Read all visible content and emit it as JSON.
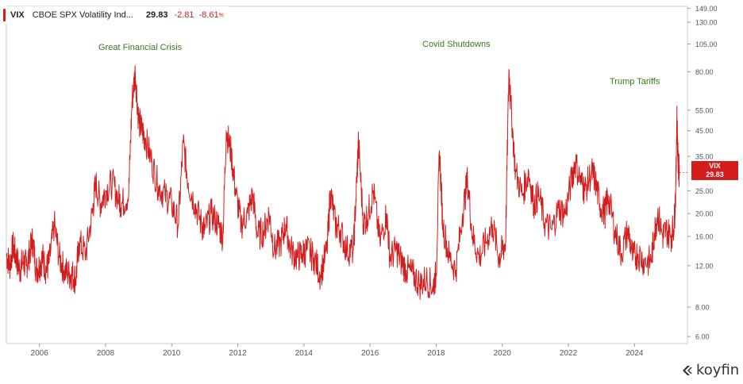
{
  "legend": {
    "ticker": "VIX",
    "name": "CBOE SPX Volatility Ind...",
    "last": "29.83",
    "change": "-2.81",
    "change_pct": "-8.61",
    "pct_sign": "%"
  },
  "price_tag": {
    "ticker": "VIX",
    "value": "29.83"
  },
  "annotations": {
    "gfc": "Great Financial Crisis",
    "covid": "Covid Shutdowns",
    "tariffs": "Trump Tariffs"
  },
  "logo": {
    "text": "koyfin"
  },
  "colors": {
    "series": "#d41e1e",
    "annotation": "#3a7a1e",
    "axis": "#cccccc"
  },
  "chart_data": {
    "type": "line",
    "yscale": "log",
    "ylim": [
      5.6,
      152
    ],
    "xlim": [
      2005.0,
      2025.6
    ],
    "grid": false,
    "xticks": [
      2006,
      2008,
      2010,
      2012,
      2014,
      2016,
      2018,
      2020,
      2022,
      2024
    ],
    "yticks": [
      "6.00",
      "8.00",
      "12.00",
      "16.00",
      "20.00",
      "25.00",
      "35.00",
      "45.00",
      "55.00",
      "80.00",
      "105.00",
      "130.00",
      "149.00"
    ],
    "series": [
      {
        "name": "VIX",
        "x": [
          2005.0,
          2005.1,
          2005.2,
          2005.3,
          2005.4,
          2005.5,
          2005.6,
          2005.7,
          2005.8,
          2005.9,
          2006.0,
          2006.1,
          2006.2,
          2006.3,
          2006.45,
          2006.6,
          2006.75,
          2006.9,
          2007.0,
          2007.1,
          2007.2,
          2007.4,
          2007.6,
          2007.7,
          2007.85,
          2008.0,
          2008.2,
          2008.4,
          2008.5,
          2008.7,
          2008.8,
          2008.9,
          2009.0,
          2009.1,
          2009.2,
          2009.4,
          2009.6,
          2009.8,
          2010.0,
          2010.2,
          2010.35,
          2010.5,
          2010.7,
          2010.9,
          2011.0,
          2011.2,
          2011.4,
          2011.55,
          2011.65,
          2011.8,
          2011.95,
          2012.1,
          2012.3,
          2012.45,
          2012.6,
          2012.8,
          2012.95,
          2013.1,
          2013.3,
          2013.45,
          2013.6,
          2013.8,
          2013.95,
          2014.1,
          2014.3,
          2014.5,
          2014.7,
          2014.8,
          2014.95,
          2015.1,
          2015.3,
          2015.5,
          2015.6,
          2015.65,
          2015.8,
          2015.95,
          2016.1,
          2016.3,
          2016.5,
          2016.6,
          2016.8,
          2016.95,
          2017.1,
          2017.3,
          2017.5,
          2017.7,
          2017.9,
          2018.0,
          2018.1,
          2018.2,
          2018.4,
          2018.6,
          2018.8,
          2018.95,
          2019.1,
          2019.3,
          2019.5,
          2019.7,
          2019.9,
          2020.0,
          2020.1,
          2020.2,
          2020.25,
          2020.4,
          2020.6,
          2020.8,
          2020.95,
          2021.1,
          2021.3,
          2021.5,
          2021.7,
          2021.9,
          2022.1,
          2022.2,
          2022.4,
          2022.5,
          2022.7,
          2022.8,
          2022.95,
          2023.1,
          2023.2,
          2023.4,
          2023.6,
          2023.8,
          2023.95,
          2024.1,
          2024.3,
          2024.5,
          2024.6,
          2024.7,
          2024.85,
          2024.95,
          2025.1,
          2025.2,
          2025.25,
          2025.28,
          2025.32,
          2025.36
        ],
        "y": [
          13.5,
          12.0,
          14.5,
          13.0,
          11.5,
          12.5,
          12.0,
          13.5,
          15.5,
          11.5,
          12.0,
          13.0,
          11.5,
          12.5,
          18.0,
          13.0,
          11.5,
          11.0,
          11.0,
          10.5,
          15.0,
          13.5,
          20.0,
          27.0,
          22.0,
          25.0,
          27.0,
          23.0,
          22.0,
          24.0,
          60.0,
          80.0,
          50.0,
          45.0,
          42.0,
          33.0,
          26.0,
          24.0,
          22.0,
          18.0,
          40.0,
          27.0,
          22.0,
          18.0,
          17.0,
          20.0,
          18.0,
          16.0,
          45.0,
          36.0,
          24.0,
          18.0,
          20.0,
          24.0,
          16.0,
          17.0,
          20.0,
          14.0,
          15.0,
          18.0,
          14.0,
          13.0,
          13.5,
          14.0,
          13.0,
          11.0,
          14.0,
          25.0,
          18.0,
          17.0,
          14.0,
          14.0,
          28.0,
          40.0,
          18.0,
          20.0,
          25.0,
          15.0,
          20.0,
          13.0,
          14.0,
          12.5,
          11.5,
          11.0,
          10.0,
          10.5,
          9.8,
          11.0,
          37.0,
          18.0,
          13.0,
          11.5,
          20.0,
          28.0,
          16.0,
          13.0,
          15.0,
          18.0,
          13.0,
          14.0,
          15.0,
          82.0,
          60.0,
          30.0,
          24.0,
          30.0,
          22.0,
          24.0,
          18.0,
          17.0,
          21.0,
          20.0,
          28.0,
          33.0,
          27.0,
          25.0,
          30.0,
          28.0,
          22.0,
          20.0,
          24.0,
          17.0,
          13.5,
          17.0,
          13.0,
          13.5,
          12.5,
          12.5,
          16.5,
          20.0,
          16.0,
          17.0,
          16.0,
          18.0,
          26.0,
          52.0,
          32.0,
          29.83
        ]
      }
    ]
  }
}
